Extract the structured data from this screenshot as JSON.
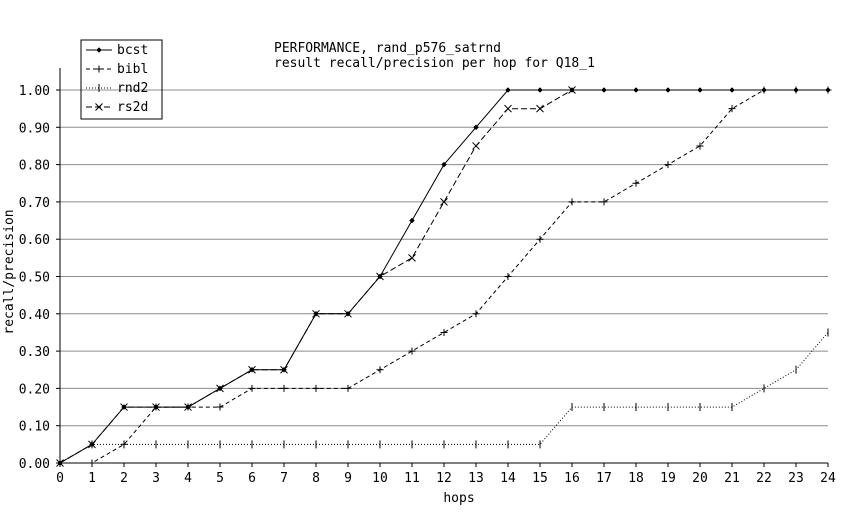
{
  "chart_data": {
    "type": "line",
    "title": "PERFORMANCE, rand_p576_satrnd",
    "subtitle": "result recall/precision per hop for Q18_1",
    "xlabel": "hops",
    "ylabel": "recall/precision",
    "xlim": [
      0,
      24
    ],
    "ylim": [
      0,
      1.05
    ],
    "x_ticks": [
      0,
      1,
      2,
      3,
      4,
      5,
      6,
      7,
      8,
      9,
      10,
      11,
      12,
      13,
      14,
      15,
      16,
      17,
      18,
      19,
      20,
      21,
      22,
      23,
      24
    ],
    "y_ticks": [
      0.0,
      0.1,
      0.2,
      0.3,
      0.4,
      0.5,
      0.6,
      0.7,
      0.8,
      0.9,
      1.0
    ],
    "y_tick_labels": [
      "0.00",
      "0.10",
      "0.20",
      "0.30",
      "0.40",
      "0.50",
      "0.60",
      "0.70",
      "0.80",
      "0.90",
      "1.00"
    ],
    "grid": "horizontal",
    "legend_position": "top-left",
    "series": [
      {
        "name": "bcst",
        "marker": "diamond",
        "dash": "solid",
        "x": [
          0,
          1,
          2,
          3,
          4,
          5,
          6,
          7,
          8,
          9,
          10,
          11,
          12,
          13,
          14,
          15,
          16,
          17,
          18,
          19,
          20,
          21,
          22,
          23,
          24
        ],
        "values": [
          0,
          0.05,
          0.15,
          0.15,
          0.15,
          0.2,
          0.25,
          0.25,
          0.4,
          0.4,
          0.5,
          0.65,
          0.8,
          0.9,
          1.0,
          1.0,
          1.0,
          1.0,
          1.0,
          1.0,
          1.0,
          1.0,
          1.0,
          1.0,
          1.0
        ]
      },
      {
        "name": "bibl",
        "marker": "plus",
        "dash": "dashed",
        "x": [
          0,
          1,
          2,
          3,
          4,
          5,
          6,
          7,
          8,
          9,
          10,
          11,
          12,
          13,
          14,
          15,
          16,
          17,
          18,
          19,
          20,
          21,
          22,
          23,
          24
        ],
        "values": [
          0,
          0,
          0.05,
          0.15,
          0.15,
          0.15,
          0.2,
          0.2,
          0.2,
          0.2,
          0.25,
          0.3,
          0.35,
          0.4,
          0.5,
          0.6,
          0.7,
          0.7,
          0.75,
          0.8,
          0.85,
          0.95,
          1.0,
          1.0,
          1.0
        ]
      },
      {
        "name": "rnd2",
        "marker": "vtick",
        "dash": "dotted",
        "x": [
          0,
          1,
          2,
          3,
          4,
          5,
          6,
          7,
          8,
          9,
          10,
          11,
          12,
          13,
          14,
          15,
          16,
          17,
          18,
          19,
          20,
          21,
          22,
          23,
          24
        ],
        "values": [
          0,
          0.05,
          0.05,
          0.05,
          0.05,
          0.05,
          0.05,
          0.05,
          0.05,
          0.05,
          0.05,
          0.05,
          0.05,
          0.05,
          0.05,
          0.05,
          0.15,
          0.15,
          0.15,
          0.15,
          0.15,
          0.15,
          0.2,
          0.25,
          0.35
        ]
      },
      {
        "name": "rs2d",
        "marker": "cross",
        "dash": "longdash",
        "x": [
          0,
          1,
          2,
          3,
          4,
          5,
          6,
          7,
          8,
          9,
          10,
          11,
          12,
          13,
          14,
          15,
          16
        ],
        "values": [
          0,
          0.05,
          0.15,
          0.15,
          0.15,
          0.2,
          0.25,
          0.25,
          0.4,
          0.4,
          0.5,
          0.55,
          0.7,
          0.85,
          0.95,
          0.95,
          1.0
        ]
      }
    ]
  }
}
